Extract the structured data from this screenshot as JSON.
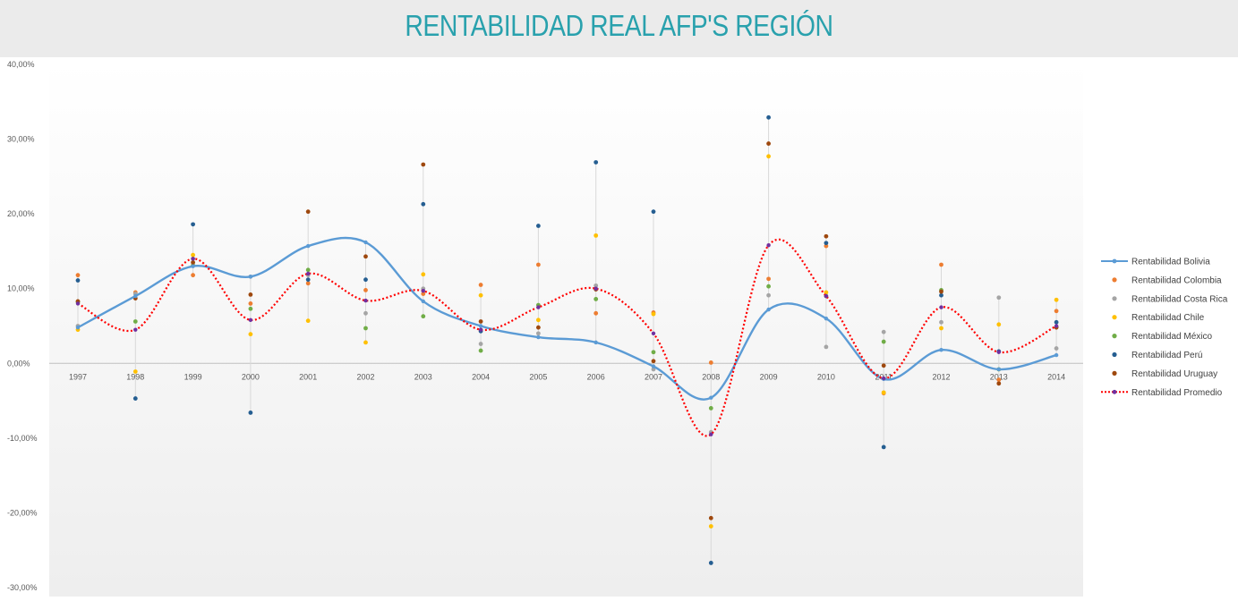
{
  "chart_data": {
    "type": "line",
    "title": "RENTABILIDAD REAL AFP'S REGIÓN",
    "xlabel": "",
    "ylabel": "",
    "ylim": [
      -0.3,
      0.4
    ],
    "yticks": [
      "40,00%",
      "30,00%",
      "20,00%",
      "10,00%",
      "0,00%",
      "-10,00%",
      "-20,00%",
      "-30,00%"
    ],
    "ytick_values": [
      0.4,
      0.3,
      0.2,
      0.1,
      0.0,
      -0.1,
      -0.2,
      -0.3
    ],
    "categories": [
      "1997",
      "1998",
      "1999",
      "2000",
      "2001",
      "2002",
      "2003",
      "2004",
      "2005",
      "2006",
      "2007",
      "2008",
      "2009",
      "2010",
      "2011",
      "2012",
      "2013",
      "2014"
    ],
    "legend_position": "right",
    "series": [
      {
        "name": "Rentabilidad Bolivia",
        "color": "#5b9bd5",
        "style": "line",
        "values": [
          0.048,
          0.09,
          0.13,
          0.116,
          0.157,
          0.162,
          0.083,
          0.05,
          0.035,
          0.028,
          -0.004,
          -0.046,
          0.072,
          0.06,
          -0.021,
          0.018,
          -0.008,
          0.011
        ]
      },
      {
        "name": "Rentabilidad Colombia",
        "color": "#ed7d31",
        "style": "marker",
        "values": [
          0.118,
          0.095,
          0.118,
          0.08,
          0.107,
          0.098,
          0.093,
          0.105,
          0.132,
          0.067,
          0.068,
          0.001,
          0.113,
          0.157,
          -0.04,
          0.132,
          -0.022,
          0.07
        ]
      },
      {
        "name": "Rentabilidad Costa Rica",
        "color": "#a5a5a5",
        "style": "marker",
        "values": [
          0.05,
          0.093,
          0.14,
          0.116,
          0.118,
          0.067,
          0.1,
          0.026,
          0.04,
          0.104,
          -0.008,
          -0.092,
          0.091,
          0.022,
          0.042,
          0.055,
          0.088,
          0.02
        ]
      },
      {
        "name": "Rentabilidad Chile",
        "color": "#ffc000",
        "style": "marker",
        "values": [
          0.045,
          -0.011,
          0.145,
          0.039,
          0.057,
          0.028,
          0.119,
          0.091,
          0.058,
          0.171,
          0.066,
          -0.218,
          0.277,
          0.095,
          -0.039,
          0.047,
          0.052,
          0.085
        ]
      },
      {
        "name": "Rentabilidad México",
        "color": "#70ad47",
        "style": "marker",
        "values": [
          0.082,
          0.056,
          0.131,
          0.073,
          0.125,
          0.047,
          0.063,
          0.017,
          0.078,
          0.086,
          0.015,
          -0.06,
          0.103,
          0.09,
          0.029,
          0.098,
          -0.008,
          0.049
        ]
      },
      {
        "name": "Rentabilidad Perú",
        "color": "#255e91",
        "style": "marker",
        "values": [
          0.111,
          -0.047,
          0.186,
          -0.066,
          0.112,
          0.112,
          0.213,
          0.043,
          0.184,
          0.269,
          0.203,
          -0.267,
          0.329,
          0.161,
          -0.112,
          0.091,
          0.016,
          0.055
        ]
      },
      {
        "name": "Rentabilidad Uruguay",
        "color": "#9e480e",
        "style": "marker",
        "values": [
          0.083,
          0.087,
          0.135,
          0.092,
          0.203,
          0.143,
          0.266,
          0.056,
          0.048,
          0.099,
          0.003,
          -0.207,
          0.294,
          0.17,
          -0.003,
          0.096,
          -0.027,
          0.048
        ]
      },
      {
        "name": "Rentabilidad Promedio",
        "color": "#ff0000",
        "style": "dotted",
        "values": [
          0.08,
          0.045,
          0.14,
          0.058,
          0.12,
          0.084,
          0.097,
          0.045,
          0.075,
          0.1,
          0.04,
          -0.095,
          0.158,
          0.09,
          -0.02,
          0.075,
          0.015,
          0.05
        ]
      }
    ]
  }
}
